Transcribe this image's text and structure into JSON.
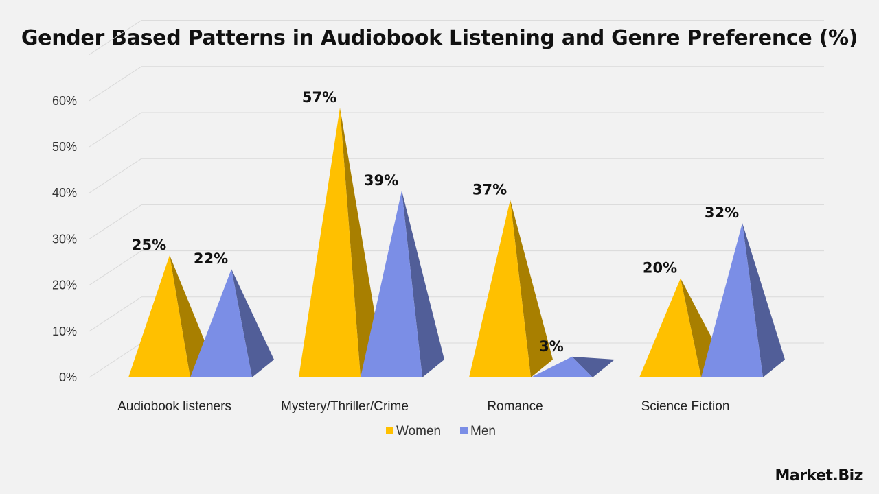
{
  "chart_data": {
    "type": "bar",
    "title": "Gender Based Patterns in Audiobook Listening and Genre Preference (%)",
    "categories": [
      "Audiobook listeners",
      "Mystery/Thriller/Crime",
      "Romance",
      "Science Fiction"
    ],
    "series": [
      {
        "name": "Women",
        "values": [
          25,
          57,
          37,
          20
        ],
        "color": "#ffc000",
        "labels": [
          "25%",
          "57%",
          "37%",
          "20%"
        ]
      },
      {
        "name": "Men",
        "values": [
          22,
          39,
          3,
          32
        ],
        "color": "#7b8ee6",
        "labels": [
          "22%",
          "39%",
          "3%",
          "32%"
        ]
      }
    ],
    "y_ticks": [
      "0%",
      "10%",
      "20%",
      "30%",
      "40%",
      "50%",
      "60%"
    ],
    "ylim": [
      0,
      60
    ],
    "grid": true,
    "legend_position": "bottom",
    "style": "3d-pyramid"
  },
  "brand": "Market.Biz"
}
